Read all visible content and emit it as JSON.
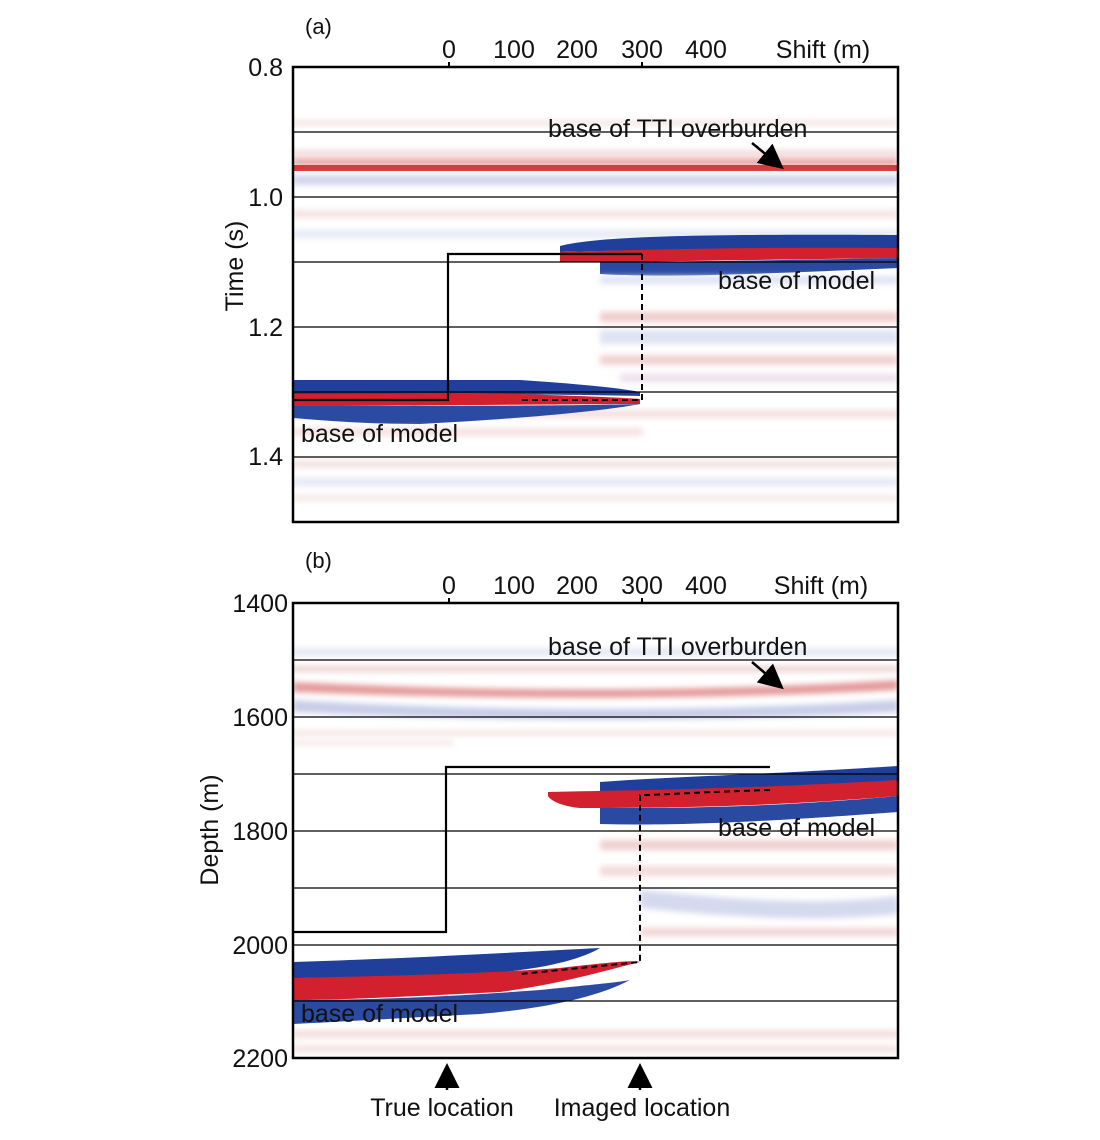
{
  "panel_a": {
    "label": "(a)",
    "shift_label": "Shift (m)",
    "shift_ticks": [
      "0",
      "100",
      "200",
      "300",
      "400"
    ],
    "y_label": "Time (s)",
    "y_ticks": [
      "0.8",
      "1.0",
      "1.2",
      "1.4"
    ],
    "annotations": {
      "tti": "base of TTI overburden",
      "model_right": "base of model",
      "model_left": "base of model"
    }
  },
  "panel_b": {
    "label": "(b)",
    "shift_label": "Shift (m)",
    "shift_ticks": [
      "0",
      "100",
      "200",
      "300",
      "400"
    ],
    "y_label": "Depth (m)",
    "y_ticks": [
      "1400",
      "1600",
      "1800",
      "2000",
      "2200"
    ],
    "annotations": {
      "tti": "base of TTI overburden",
      "model_right": "base of model",
      "model_left": "base of model"
    }
  },
  "footer": {
    "true_location": "True location",
    "imaged_location": "Imaged location"
  },
  "colors": {
    "positive": "#d2202e",
    "negative": "#1f3f9a",
    "frame": "#000000"
  }
}
